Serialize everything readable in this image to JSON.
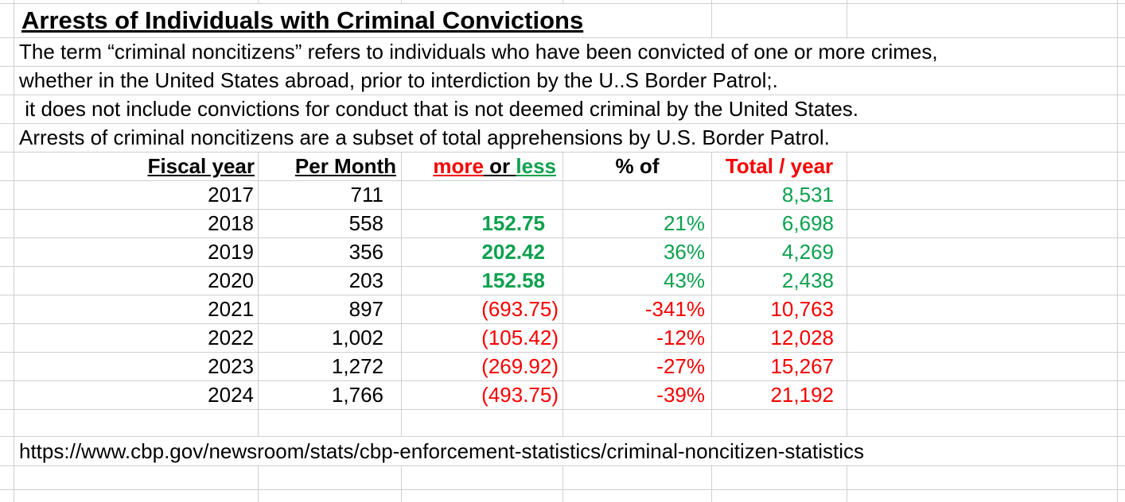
{
  "colors": {
    "green": "#0ca14e",
    "red": "#f80000",
    "grid": "#cfcfcf",
    "text": "#000000"
  },
  "title": "Arrests of Individuals with Criminal Convictions",
  "description": {
    "line1": "The term “criminal noncitizens” refers to individuals who have been convicted of one or more crimes,",
    "line2": "whether in the United States abroad, prior to interdiction by the U..S Border Patrol;.",
    "line3": " it does not include convictions for conduct that is not deemed criminal by the United States.",
    "line4": "Arrests of criminal noncitizens are a subset of total apprehensions by U.S. Border Patrol."
  },
  "table": {
    "headers": {
      "fiscal_year": "Fiscal year",
      "per_month": "Per Month",
      "more": "more",
      "or": " or ",
      "less": "less",
      "pct_of": "% of",
      "total_year": "Total / year"
    },
    "rows": [
      {
        "year": "2017",
        "per_month": "711",
        "more_less": "",
        "pct": "",
        "total": "8,531"
      },
      {
        "year": "2018",
        "per_month": "558",
        "more_less": "152.75",
        "pct": "21%",
        "total": "6,698"
      },
      {
        "year": "2019",
        "per_month": "356",
        "more_less": "202.42",
        "pct": "36%",
        "total": "4,269"
      },
      {
        "year": "2020",
        "per_month": "203",
        "more_less": "152.58",
        "pct": "43%",
        "total": "2,438"
      },
      {
        "year": "2021",
        "per_month": "897",
        "more_less": "(693.75)",
        "pct": "-341%",
        "total": "10,763"
      },
      {
        "year": "2022",
        "per_month": "1,002",
        "more_less": "(105.42)",
        "pct": "-12%",
        "total": "12,028"
      },
      {
        "year": "2023",
        "per_month": "1,272",
        "more_less": "(269.92)",
        "pct": "-27%",
        "total": "15,267"
      },
      {
        "year": "2024",
        "per_month": "1,766",
        "more_less": "(493.75)",
        "pct": "-39%",
        "total": "21,192"
      }
    ]
  },
  "source_url": "https://www.cbp.gov/newsroom/stats/cbp-enforcement-statistics/criminal-noncitizen-statistics"
}
